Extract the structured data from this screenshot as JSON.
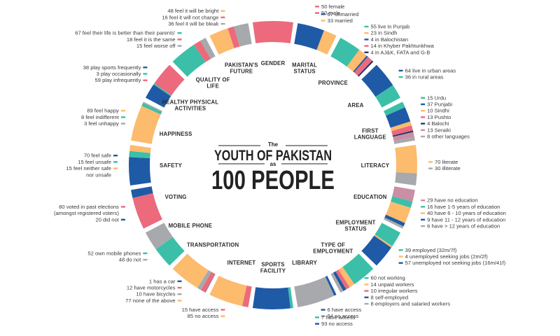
{
  "title": {
    "pre": "The",
    "main": "YOUTH OF PAKISTAN",
    "mid": "as",
    "big": "100 PEOPLE"
  },
  "colors": {
    "blue": "#1f5aa6",
    "teal": "#3bbfa8",
    "orange": "#fcbb6d",
    "pink": "#ec6a7c",
    "gray": "#a7a9ac",
    "mauve": "#c98fa5",
    "navy": "#223b6e",
    "ltblue": "#6ea0d4"
  },
  "chart_data": {
    "type": "donut",
    "title": "The YOUTH OF PAKISTAN as 100 PEOPLE",
    "categories": [
      {
        "name": "GENDER",
        "items": [
          {
            "label": "50 female",
            "value": 50,
            "color": "pink"
          },
          {
            "label": "50 male",
            "value": 50,
            "color": "pink"
          }
        ]
      },
      {
        "name": "MARITAL STATUS",
        "items": [
          {
            "label": "67 unmarried",
            "value": 67,
            "color": "blue"
          },
          {
            "label": "33 married",
            "value": 33,
            "color": "orange"
          }
        ]
      },
      {
        "name": "PROVINCE",
        "items": [
          {
            "label": "55 live in Punjab",
            "value": 55,
            "color": "teal"
          },
          {
            "label": "23 in Sindh",
            "value": 23,
            "color": "orange"
          },
          {
            "label": "4 in Balochistan",
            "value": 4,
            "color": "blue"
          },
          {
            "label": "14 in Khyber Pakhtunkhwa",
            "value": 14,
            "color": "pink"
          },
          {
            "label": "4 in AJ&K, FATA and G-B",
            "value": 4,
            "color": "navy"
          }
        ]
      },
      {
        "name": "AREA",
        "items": [
          {
            "label": "64 live in urban areas",
            "value": 64,
            "color": "blue"
          },
          {
            "label": "36 in rural areas",
            "value": 36,
            "color": "teal"
          }
        ]
      },
      {
        "name": "FIRST LANGUAGE",
        "items": [
          {
            "label": "15 Urdu",
            "value": 15,
            "color": "teal"
          },
          {
            "label": "37 Punjabi",
            "value": 37,
            "color": "blue"
          },
          {
            "label": "10 Sindhi",
            "value": 10,
            "color": "orange"
          },
          {
            "label": "13 Pushto",
            "value": 13,
            "color": "pink"
          },
          {
            "label": "4 Balochi",
            "value": 4,
            "color": "navy"
          },
          {
            "label": "13 Seraiki",
            "value": 13,
            "color": "mauve"
          },
          {
            "label": "8 other languages",
            "value": 8,
            "color": "gray"
          }
        ]
      },
      {
        "name": "LITERACY",
        "items": [
          {
            "label": "70 literate",
            "value": 70,
            "color": "orange"
          },
          {
            "label": "30 illiterate",
            "value": 30,
            "color": "gray"
          }
        ]
      },
      {
        "name": "EDUCATION",
        "items": [
          {
            "label": "29 have no education",
            "value": 29,
            "color": "mauve"
          },
          {
            "label": "16 have 1-5 years of education",
            "value": 16,
            "color": "teal"
          },
          {
            "label": "40 have 6 - 10 years of education",
            "value": 40,
            "color": "orange"
          },
          {
            "label": "9 have 11 - 12 years of education",
            "value": 9,
            "color": "blue"
          },
          {
            "label": "6 have > 12 years of education",
            "value": 6,
            "color": "gray"
          }
        ]
      },
      {
        "name": "EMPLOYMENT STATUS",
        "items": [
          {
            "label": "39 employed (32m/7f)",
            "value": 39,
            "color": "teal"
          },
          {
            "label": "4 unemployed seeking jobs (2m/2f)",
            "value": 4,
            "color": "orange"
          },
          {
            "label": "57 unemployed not seeking jobs (16m/41f)",
            "value": 57,
            "color": "blue"
          }
        ]
      },
      {
        "name": "TYPE OF EMPLOYMENT",
        "items": [
          {
            "label": "60 not working",
            "value": 60,
            "color": "teal"
          },
          {
            "label": "14 unpaid workers",
            "value": 14,
            "color": "orange"
          },
          {
            "label": "10 irregular workers",
            "value": 10,
            "color": "pink"
          },
          {
            "label": "8 self-employed",
            "value": 8,
            "color": "blue"
          },
          {
            "label": "8 employers and salaried workers",
            "value": 8,
            "color": "gray"
          }
        ]
      },
      {
        "name": "LIBRARY",
        "items": [
          {
            "label": "6 have access",
            "value": 6,
            "color": "blue"
          },
          {
            "label": "94 no access",
            "value": 94,
            "color": "gray"
          }
        ]
      },
      {
        "name": "SPORTS FACILITY",
        "items": [
          {
            "label": "7 have access",
            "value": 7,
            "color": "teal"
          },
          {
            "label": "93 no access",
            "value": 93,
            "color": "blue"
          }
        ]
      },
      {
        "name": "INTERNET",
        "items": [
          {
            "label": "15 have access",
            "value": 15,
            "color": "pink"
          },
          {
            "label": "85 no access",
            "value": 85,
            "color": "orange"
          }
        ]
      },
      {
        "name": "TRANSPORTATION",
        "items": [
          {
            "label": "1 has a car",
            "value": 1,
            "color": "blue"
          },
          {
            "label": "12 have motorcycles",
            "value": 12,
            "color": "pink"
          },
          {
            "label": "10 have bicycles",
            "value": 10,
            "color": "gray"
          },
          {
            "label": "77 none of the above",
            "value": 77,
            "color": "orange"
          }
        ]
      },
      {
        "name": "MOBILE PHONE",
        "items": [
          {
            "label": "52 own mobile phones",
            "value": 52,
            "color": "teal"
          },
          {
            "label": "48 do not",
            "value": 48,
            "color": "gray"
          }
        ]
      },
      {
        "name": "VOTING",
        "items": [
          {
            "label": "80 voted in past elections",
            "sublabel": "(amongst registered voters)",
            "value": 80,
            "color": "pink"
          },
          {
            "label": "20 did not",
            "value": 20,
            "color": "blue"
          }
        ]
      },
      {
        "name": "SAFETY",
        "items": [
          {
            "label": "70 feel safe",
            "value": 70,
            "color": "blue"
          },
          {
            "label": "15 feel unsafe",
            "value": 15,
            "color": "teal"
          },
          {
            "label": "15 feel neither safe",
            "sublabel": "nor unsafe",
            "value": 15,
            "color": "orange"
          }
        ]
      },
      {
        "name": "HAPPINESS",
        "items": [
          {
            "label": "89 feel happy",
            "value": 89,
            "color": "orange"
          },
          {
            "label": "8 feel indifferent",
            "value": 8,
            "color": "teal"
          },
          {
            "label": "3 feel unhappy",
            "value": 3,
            "color": "gray"
          }
        ]
      },
      {
        "name": "HEALTHY PHYSICAL ACTIVITIES",
        "items": [
          {
            "label": "38 play sports frequently",
            "value": 38,
            "color": "blue"
          },
          {
            "label": "3 play occasionally",
            "value": 3,
            "color": "teal"
          },
          {
            "label": "59 play infrequently",
            "value": 59,
            "color": "pink"
          }
        ]
      },
      {
        "name": "QUALITY OF LIFE",
        "items": [
          {
            "label": "67 feel their life is better than their parents'",
            "value": 67,
            "color": "teal"
          },
          {
            "label": "18 feel it is the same",
            "value": 18,
            "color": "pink"
          },
          {
            "label": "15 feel worse off",
            "value": 15,
            "color": "gray"
          }
        ]
      },
      {
        "name": "PAKISTAN'S FUTURE",
        "items": [
          {
            "label": "48 feel it will be bright",
            "value": 48,
            "color": "orange"
          },
          {
            "label": "16 feel it will not change",
            "value": 16,
            "color": "pink"
          },
          {
            "label": "36 feel it will be bleak",
            "value": 36,
            "color": "gray"
          }
        ]
      }
    ]
  }
}
